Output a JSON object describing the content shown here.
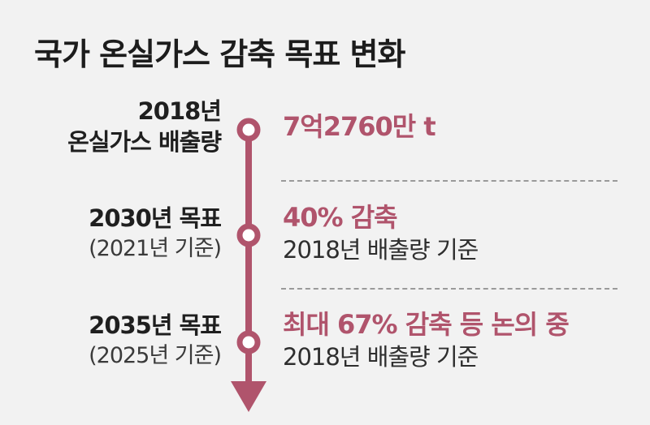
{
  "title": "국가 온실가스 감축 목표 변화",
  "accent_color": "#b0546c",
  "items": [
    {
      "label_line1": "2018년",
      "label_line2": "온실가스 배출량",
      "value": "7억2760만 t",
      "note": ""
    },
    {
      "label_line1": "2030년 목표",
      "label_line2": "(2021년 기준)",
      "value": "40% 감축",
      "note": "2018년 배출량 기준"
    },
    {
      "label_line1": "2035년 목표",
      "label_line2": "(2025년 기준)",
      "value": "최대 67% 감축 등 논의 중",
      "note": "2018년 배출량 기준"
    }
  ]
}
